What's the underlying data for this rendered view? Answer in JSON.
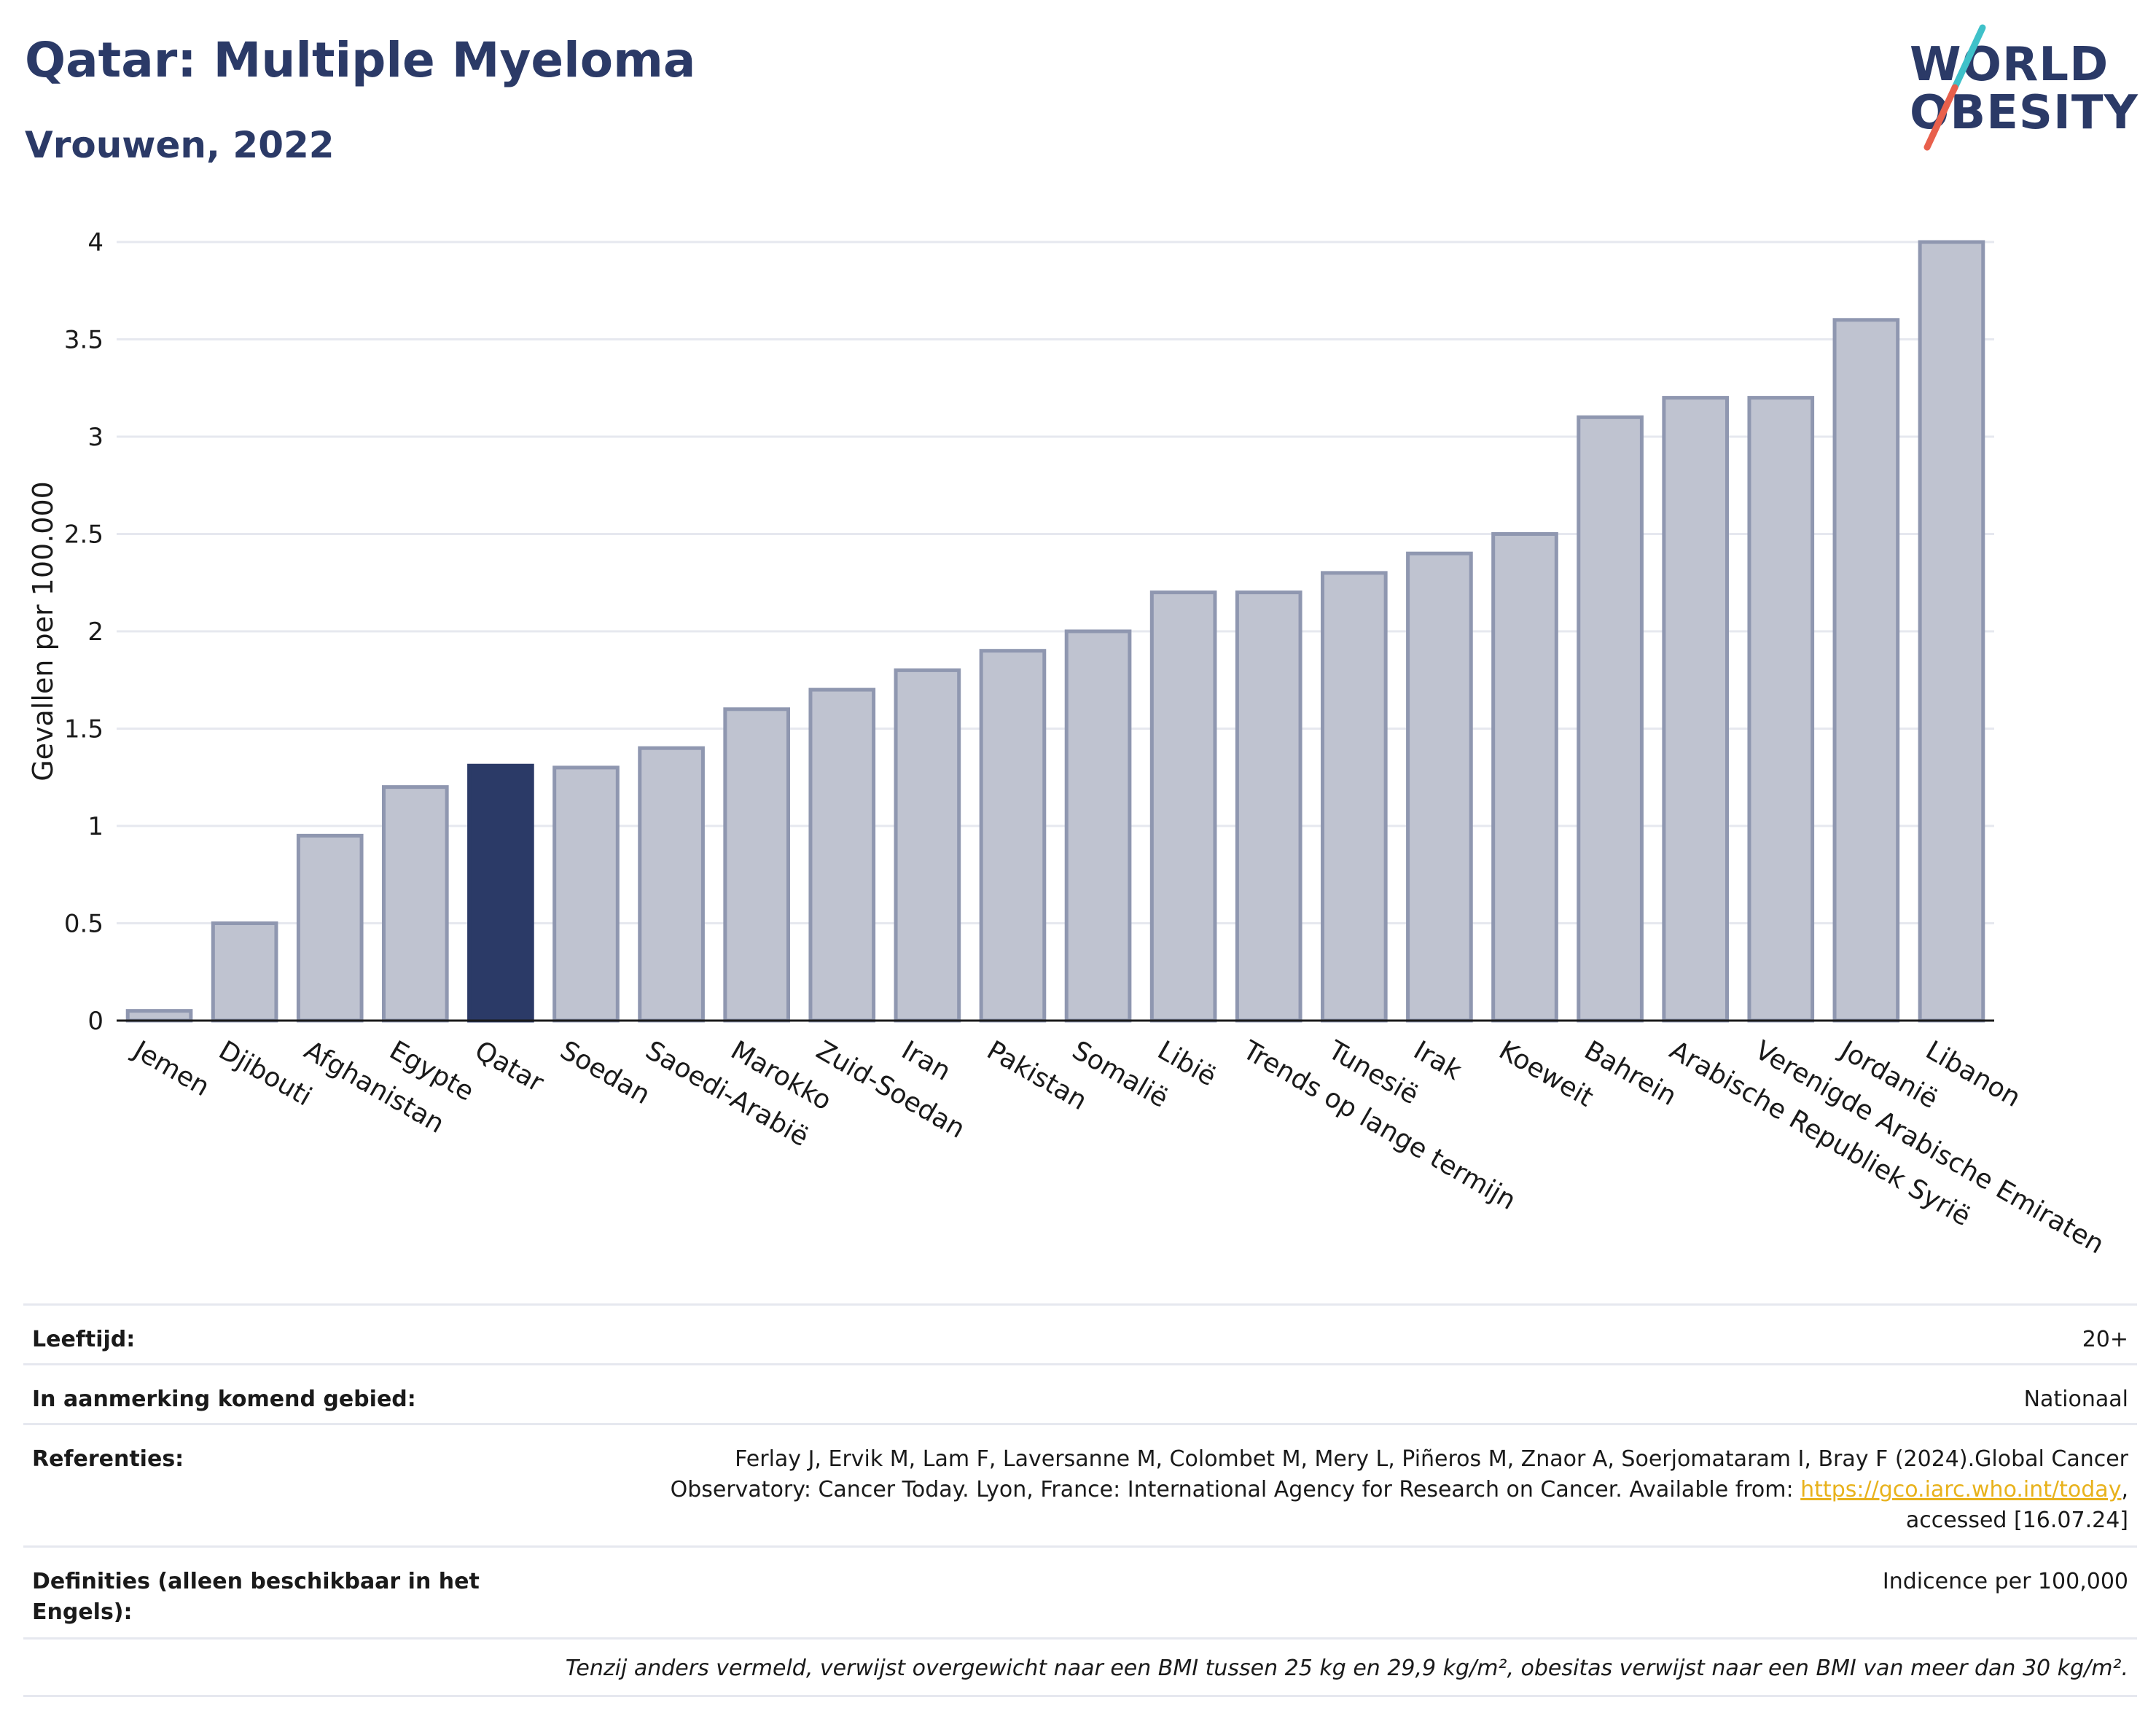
{
  "header": {
    "title": "Qatar: Multiple Myeloma",
    "subtitle": "Vrouwen, 2022"
  },
  "logo": {
    "line1": "WORLD",
    "line2": "OBESITY",
    "accent_colors": [
      "#3fc1c9",
      "#e8604c"
    ]
  },
  "colors": {
    "bar": "#bfc3d0",
    "bar_stroke": "#8f97b0",
    "highlight": "#2b3a67",
    "brand": "#2b3a67",
    "link": "#e8b21c"
  },
  "chart_data": {
    "type": "bar",
    "ylabel": "Gevallen per 100.000",
    "xlabel": "",
    "ylim": [
      0,
      4
    ],
    "yticks": [
      0,
      0.5,
      1,
      1.5,
      2,
      2.5,
      3,
      3.5,
      4
    ],
    "ytick_labels": [
      "0",
      "0.5",
      "1",
      "1.5",
      "2",
      "2.5",
      "3",
      "3.5",
      "4"
    ],
    "grid": true,
    "highlight": "Qatar",
    "categories": [
      "Jemen",
      "Djibouti",
      "Afghanistan",
      "Egypte",
      "Qatar",
      "Soedan",
      "Saoedi-Arabië",
      "Marokko",
      "Zuid-Soedan",
      "Iran",
      "Pakistan",
      "Somalië",
      "Libië",
      "Trends op lange termijn",
      "Tunesië",
      "Irak",
      "Koeweit",
      "Bahrein",
      "Arabische Republiek Syrië",
      "Verenigde Arabische Emiraten",
      "Jordanië",
      "Libanon"
    ],
    "values": [
      0.05,
      0.5,
      0.95,
      1.2,
      1.31,
      1.3,
      1.4,
      1.6,
      1.7,
      1.8,
      1.9,
      2.0,
      2.2,
      2.2,
      2.3,
      2.4,
      2.5,
      3.1,
      3.2,
      3.2,
      3.6,
      4.0
    ]
  },
  "meta": {
    "age_label": "Leeftijd:",
    "age_value": "20+",
    "area_label": "In aanmerking komend gebied:",
    "area_value": "Nationaal",
    "ref_label": "Referenties:",
    "ref_text_1": "Ferlay J, Ervik M, Lam F, Laversanne M, Colombet M, Mery L, Piñeros M, Znaor A, Soerjomataram I, Bray F (2024).Global Cancer",
    "ref_text_2": "Observatory: Cancer Today. Lyon, France: International Agency for Research on Cancer. Available from: ",
    "ref_link": "https://gco.iarc.who.int/today",
    "ref_text_3": ",",
    "ref_text_4": "accessed [16.07.24]",
    "def_label": "Definities (alleen beschikbaar in het Engels):",
    "def_value": "Indicence per 100,000",
    "note": "Tenzij anders vermeld, verwijst overgewicht naar een BMI tussen 25 kg en 29,9 kg/m², obesitas verwijst naar een BMI van meer dan 30 kg/m²."
  }
}
